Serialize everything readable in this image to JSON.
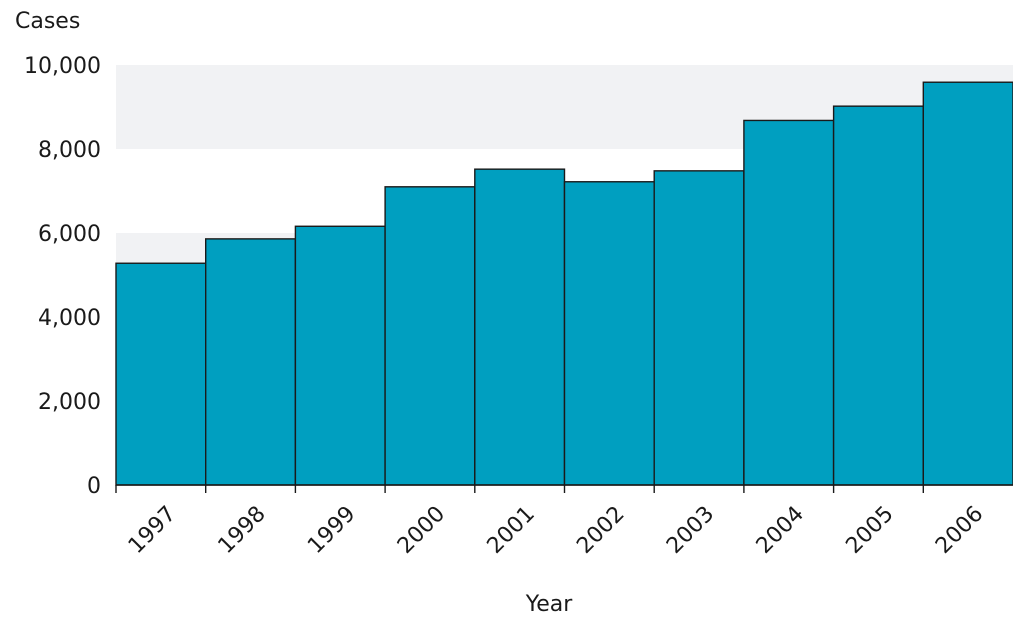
{
  "chart_data": {
    "type": "bar",
    "title": "",
    "xlabel": "Year",
    "ylabel": "Cases",
    "categories": [
      "1997",
      "1998",
      "1999",
      "2000",
      "2001",
      "2002",
      "2003",
      "2004",
      "2005",
      "2006"
    ],
    "values": [
      5280,
      5860,
      6160,
      7100,
      7520,
      7220,
      7480,
      8680,
      9020,
      9590
    ],
    "ylim": [
      0,
      10000
    ],
    "yticks": [
      0,
      2000,
      4000,
      6000,
      8000,
      10000
    ],
    "ytick_labels": [
      "0",
      "2,000",
      "4,000",
      "6,000",
      "8,000",
      "10,000"
    ],
    "grid": "alternating horizontal bands",
    "legend": "none",
    "colors": {
      "bar": "#009fc0",
      "bar_edge": "#1a1a1a",
      "band": "#f1f2f4",
      "text": "#1a1a1a"
    }
  }
}
